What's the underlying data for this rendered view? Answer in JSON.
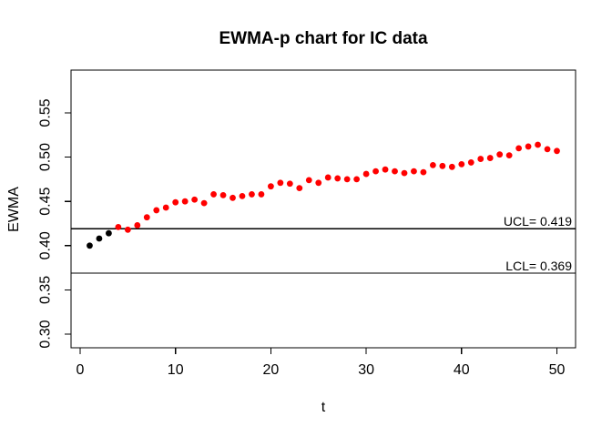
{
  "chart_data": {
    "type": "scatter",
    "title": "EWMA-p chart for IC data",
    "xlabel": "t",
    "ylabel": "EWMA",
    "xlim": [
      0,
      52
    ],
    "ylim": [
      0.285,
      0.597
    ],
    "grid": false,
    "xticks": [
      0,
      10,
      20,
      30,
      40,
      50
    ],
    "yticks": [
      "0.30",
      "0.35",
      "0.40",
      "0.45",
      "0.50",
      "0.55"
    ],
    "ucl": {
      "label": "UCL= 0.419",
      "value": 0.419
    },
    "lcl": {
      "label": "LCL= 0.369",
      "value": 0.369
    },
    "point_color_default": "#ff0000",
    "point_color_initial": "#000000",
    "initial_black_points": 3,
    "line_color": "#000000",
    "x": [
      1,
      2,
      3,
      4,
      5,
      6,
      7,
      8,
      9,
      10,
      11,
      12,
      13,
      14,
      15,
      16,
      17,
      18,
      19,
      20,
      21,
      22,
      23,
      24,
      25,
      26,
      27,
      28,
      29,
      30,
      31,
      32,
      33,
      34,
      35,
      36,
      37,
      38,
      39,
      40,
      41,
      42,
      43,
      44,
      45,
      46,
      47,
      48,
      49,
      50
    ],
    "values": [
      0.4,
      0.408,
      0.414,
      0.421,
      0.418,
      0.423,
      0.432,
      0.44,
      0.443,
      0.449,
      0.45,
      0.452,
      0.448,
      0.458,
      0.457,
      0.454,
      0.456,
      0.458,
      0.458,
      0.467,
      0.471,
      0.47,
      0.465,
      0.474,
      0.471,
      0.477,
      0.476,
      0.475,
      0.475,
      0.481,
      0.484,
      0.486,
      0.484,
      0.482,
      0.484,
      0.483,
      0.491,
      0.49,
      0.489,
      0.492,
      0.494,
      0.498,
      0.499,
      0.503,
      0.502,
      0.51,
      0.512,
      0.514,
      0.509,
      0.507
    ]
  }
}
